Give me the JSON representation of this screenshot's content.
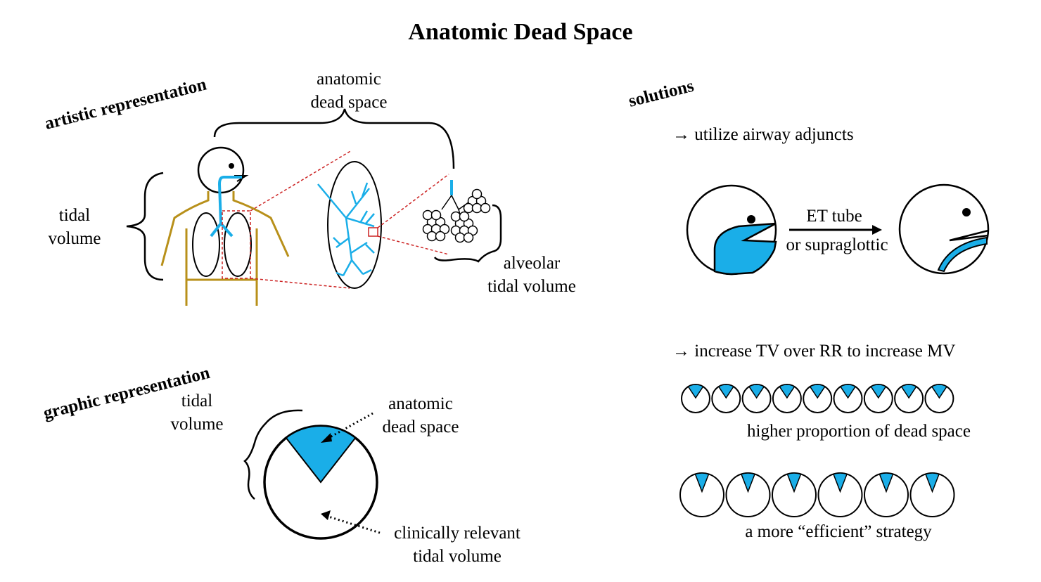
{
  "title": "Anatomic Dead Space",
  "artistic": {
    "heading": "artistic representation",
    "anatomic_dead_space": [
      "anatomic",
      "dead space"
    ],
    "tidal_volume": [
      "tidal",
      "volume"
    ],
    "alveolar_tidal_volume": [
      "alveolar",
      "tidal volume"
    ]
  },
  "graphic": {
    "heading": "graphic representation",
    "tidal_volume": [
      "tidal",
      "volume"
    ],
    "anatomic_dead_space": [
      "anatomic",
      "dead space"
    ],
    "clinically_relevant": [
      "clinically relevant",
      "tidal volume"
    ]
  },
  "solutions": {
    "heading": "solutions",
    "solution_1": "→ utilize airway adjuncts",
    "airway_arrow_label": [
      "ET tube",
      "or supraglottic"
    ],
    "solution_2": "→ increase TV over RR to increase MV",
    "small_breaths": {
      "count": 9,
      "caption": "higher proportion of dead space"
    },
    "large_breaths": {
      "count": 6,
      "caption": "a more “efficient” strategy"
    }
  },
  "colors": {
    "airway_blue": "#1aaee8",
    "body_outline": "#b8901a",
    "zoom_red": "#cc2222"
  }
}
